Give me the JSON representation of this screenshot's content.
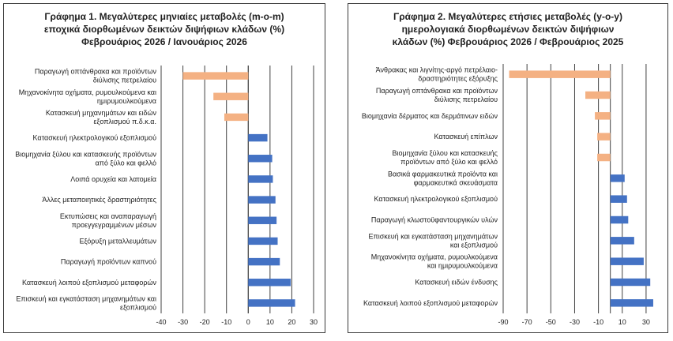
{
  "chart_data": [
    {
      "type": "bar",
      "orientation": "horizontal",
      "title_lines": [
        "Γράφημα 1. Μεγαλύτερες μηνιαίες μεταβολές (m-o-m)",
        "εποχικά διορθωμένων δεικτών διψήφιων κλάδων (%)",
        "Φεβρουάριος 2026 / Ιανουάριος 2026"
      ],
      "categories": [
        [
          "Παραγωγή οπτάνθρακα και προϊόντων",
          "διύλισης πετρελαίου"
        ],
        [
          "Μηχανοκίνητα οχήματα, ρυμουλκούμενα και",
          "ημιρυμουλκούμενα"
        ],
        [
          "Κατασκευή μηχανημάτων και ειδών",
          "εξοπλισμού π.δ.κ.α."
        ],
        [
          "Κατασκευή ηλεκτρολογικού εξοπλισμού"
        ],
        [
          "Βιομηχανία ξύλου και κατασκευής προϊόντων",
          "από ξύλο και φελλό"
        ],
        [
          "Λοιπά ορυχεία και λατομεία"
        ],
        [
          "Άλλες μεταποιητικές δραστηριότητες"
        ],
        [
          "Εκτυπώσεις και αναπαραγωγή",
          "προεγγεγραμμένων μέσων"
        ],
        [
          "Εξόρυξη μεταλλευμάτων"
        ],
        [
          "Παραγωγή προϊόντων καπνού"
        ],
        [
          "Κατασκευή λοιπού εξοπλισμού μεταφορών"
        ],
        [
          "Επισκευή και εγκατάσταση μηχανημάτων και",
          "εξοπλισμού"
        ]
      ],
      "values": [
        -30,
        -16,
        -11,
        8.8,
        11,
        11.3,
        12.5,
        13,
        13.5,
        14.5,
        19.5,
        21.5
      ],
      "xlim": [
        -40,
        30
      ],
      "xticks": [
        -40,
        -30,
        -20,
        -10,
        0,
        10,
        20,
        30
      ],
      "colors": {
        "negative": "#f4b183",
        "positive": "#4472c4",
        "grid": "#404040"
      }
    },
    {
      "type": "bar",
      "orientation": "horizontal",
      "title_lines": [
        "Γράφημα 2. Μεγαλύτερες ετήσιες μεταβολές (y-o-y)",
        "ημερολογιακά διορθωμένων δεικτών διψήφιων",
        "κλάδων (%)  Φεβρουάριος 2026 / Φεβρουάριος  2025"
      ],
      "categories": [
        [
          "Άνθρακας και λιγνίτης-αργό πετρέλαιο-",
          "δραστηριότητες εξόρυξης"
        ],
        [
          "Παραγωγή οπτάνθρακα και προϊόντων",
          "διύλισης πετρελαίου"
        ],
        [
          "Βιομηχανία δέρματος και δερμάτινων ειδών"
        ],
        [
          "Κατασκευή επίπλων"
        ],
        [
          "Βιομηχανία ξύλου και κατασκευής",
          "προϊόντων από ξύλο και φελλό"
        ],
        [
          "Βασικά φαρμακευτικά προϊόντα και",
          "φαρμακευτικά σκευάσματα"
        ],
        [
          "Κατασκευή ηλεκτρολογικού εξοπλισμού"
        ],
        [
          "Παραγωγή κλωστοϋφαντουργικών υλών"
        ],
        [
          "Επισκευή και εγκατάσταση μηχανημάτων",
          "και εξοπλισμού"
        ],
        [
          "Μηχανοκίνητα οχήματα, ρυμουλκούμενα",
          "και ημιρυμουλκούμενα"
        ],
        [
          "Κατασκευή ειδών ένδυσης"
        ],
        [
          "Κατασκευή λοιπού εξοπλισμού μεταφορών"
        ]
      ],
      "values": [
        -85,
        -21,
        -13,
        -11,
        -11,
        12,
        14,
        15,
        20,
        28,
        33.5,
        36
      ],
      "xlim": [
        -90,
        40
      ],
      "xticks": [
        -90,
        -70,
        -50,
        -30,
        -10,
        10,
        30
      ],
      "colors": {
        "negative": "#f4b183",
        "positive": "#4472c4",
        "grid": "#404040"
      }
    }
  ]
}
